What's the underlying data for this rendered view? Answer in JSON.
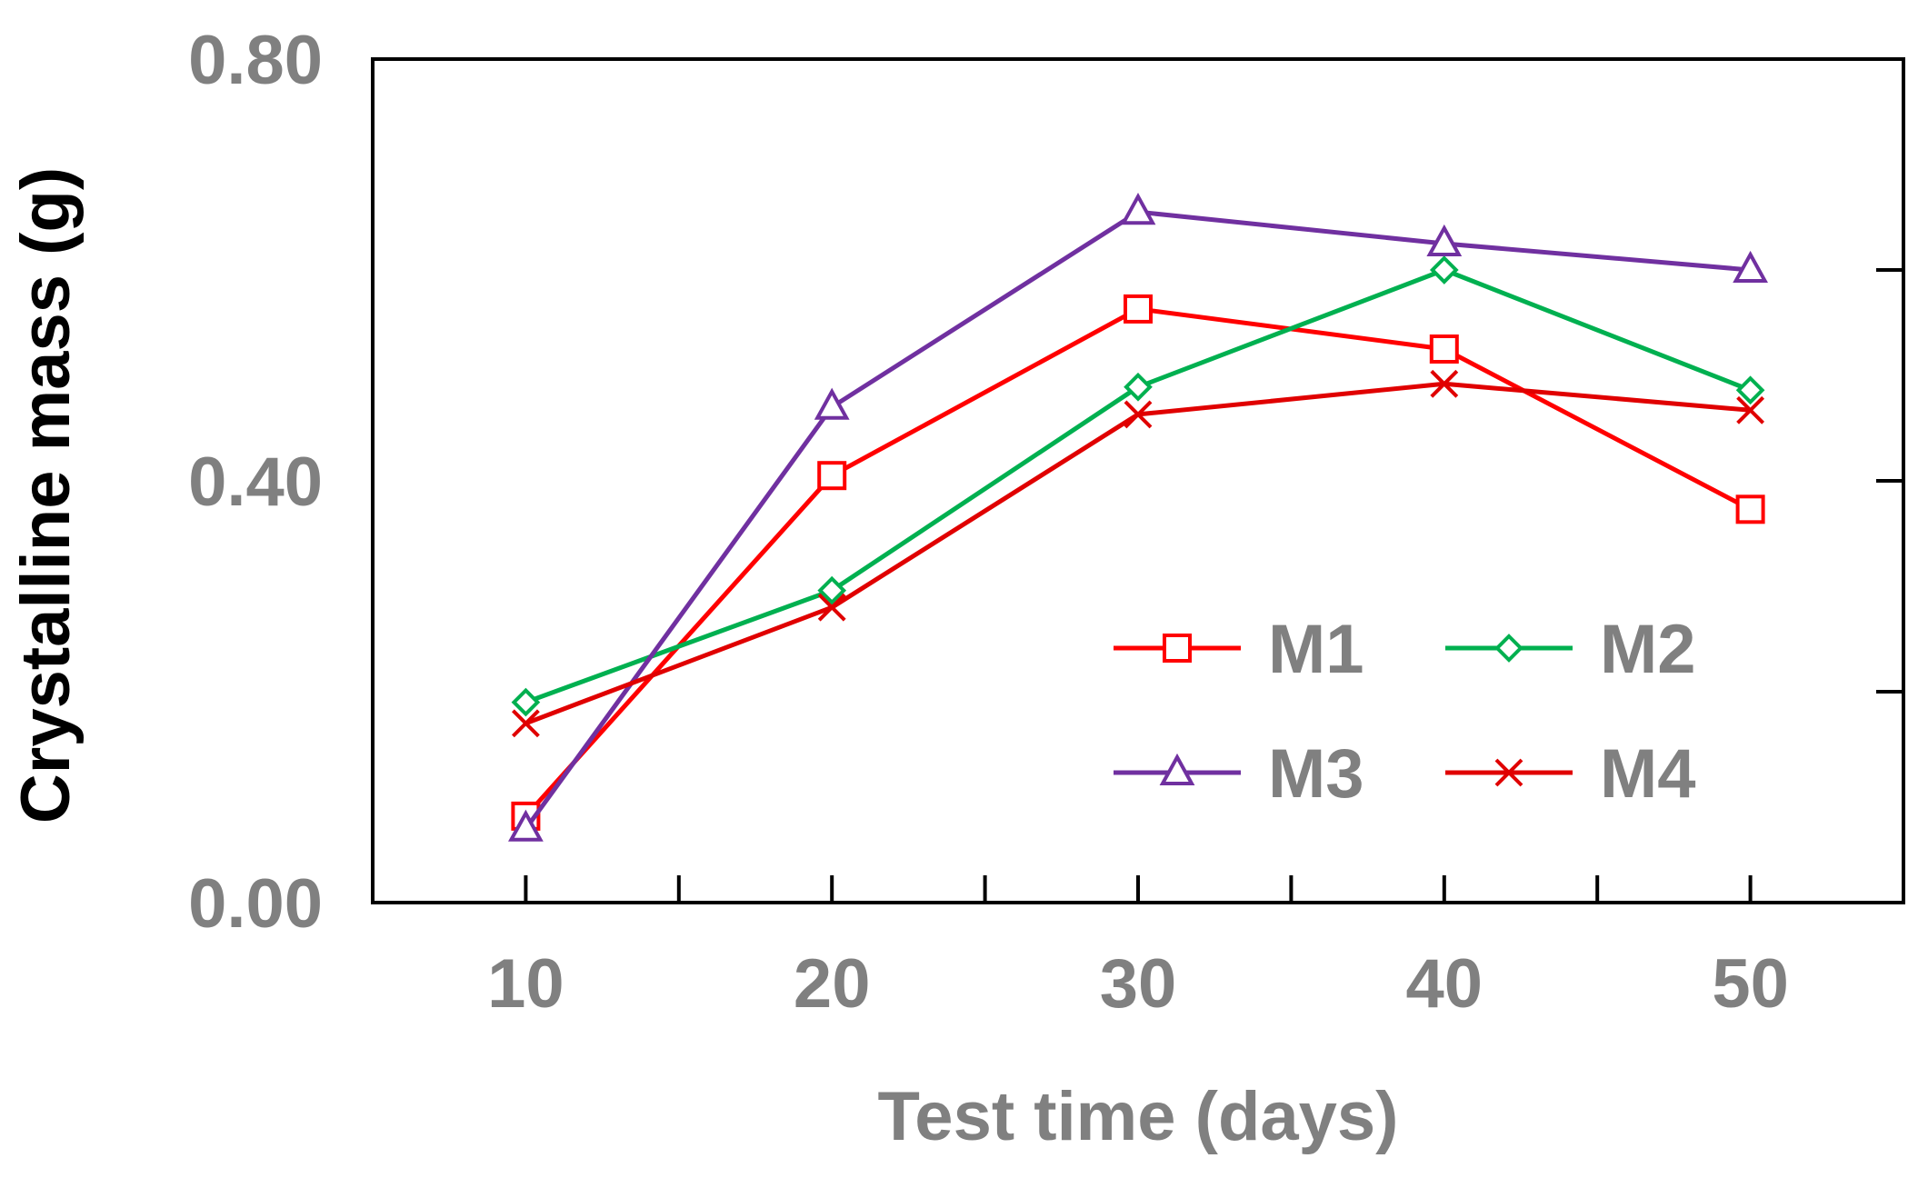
{
  "chart_data": {
    "type": "line",
    "title": "",
    "xlabel": "Test time (days)",
    "ylabel": "Crystalline mass (g)",
    "x": [
      10,
      20,
      30,
      40,
      50
    ],
    "xlim": [
      5,
      55
    ],
    "ylim": [
      0,
      0.8
    ],
    "xticks": [
      10,
      20,
      30,
      40,
      50
    ],
    "xtick_labels": [
      "10",
      "20",
      "30",
      "40",
      "50"
    ],
    "xminor_ticks": [
      15,
      25,
      35,
      45
    ],
    "yticks": [
      0,
      0.4,
      0.8
    ],
    "ytick_labels": [
      "0.00",
      "0.40",
      "0.80"
    ],
    "yminor_ticks": [
      0.2,
      0.6
    ],
    "grid": false,
    "legend_position": "bottom-right",
    "series": [
      {
        "name": "M1",
        "color": "#ff0000",
        "marker": "square",
        "values": [
          0.082,
          0.405,
          0.563,
          0.525,
          0.373
        ]
      },
      {
        "name": "M2",
        "color": "#00b050",
        "marker": "diamond",
        "values": [
          0.19,
          0.296,
          0.489,
          0.6,
          0.486
        ]
      },
      {
        "name": "M3",
        "color": "#7030a0",
        "marker": "triangle",
        "values": [
          0.07,
          0.47,
          0.655,
          0.625,
          0.6
        ]
      },
      {
        "name": "M4",
        "color": "#e00000",
        "marker": "x",
        "values": [
          0.17,
          0.28,
          0.463,
          0.492,
          0.467
        ]
      }
    ]
  }
}
